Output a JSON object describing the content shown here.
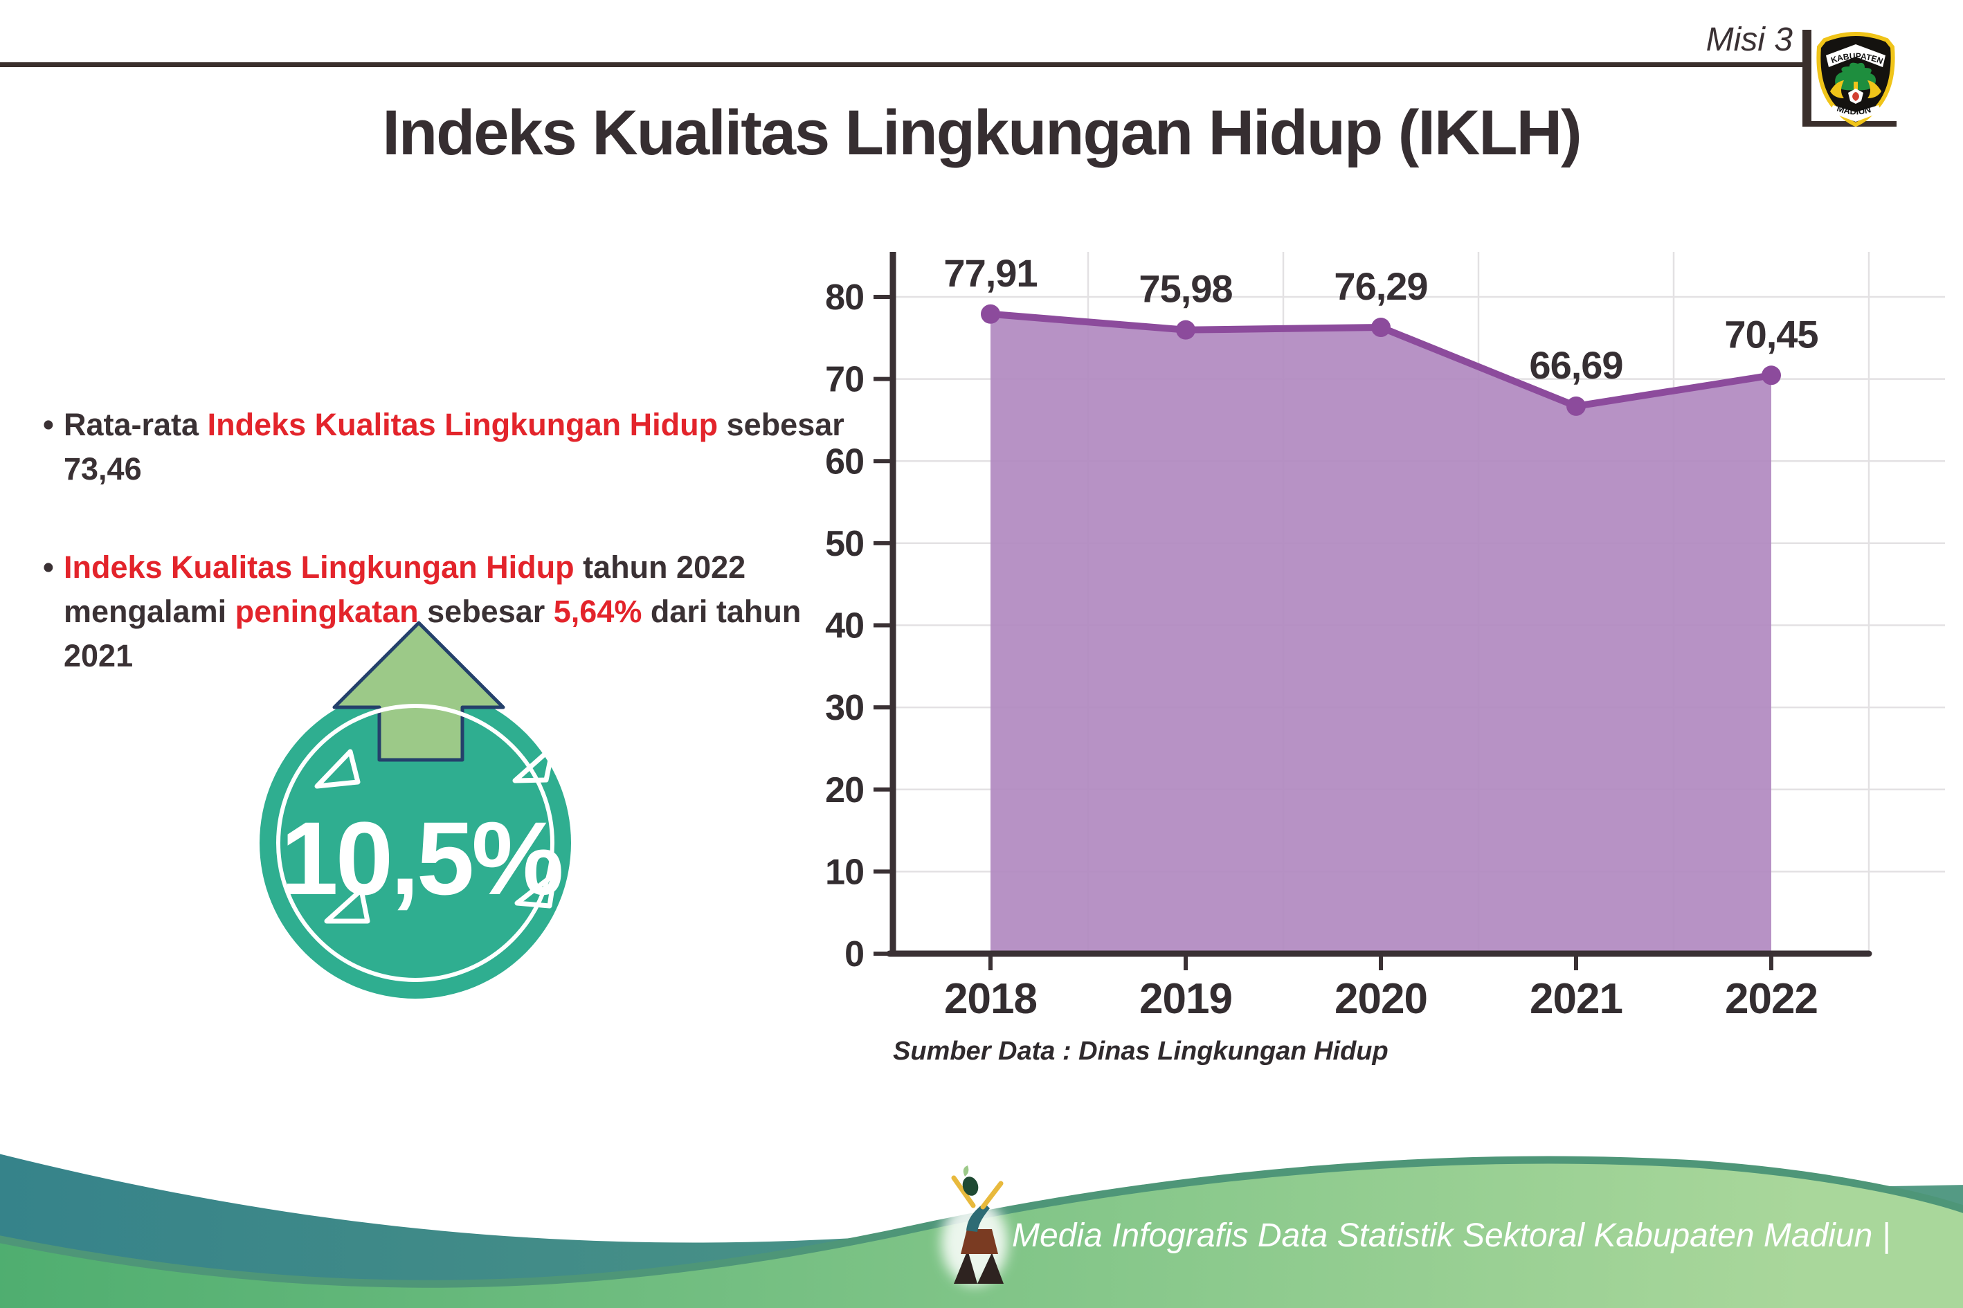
{
  "header": {
    "misi_label": "Misi 3",
    "title": "Indeks Kualitas Lingkungan Hidup (IKLH)"
  },
  "logo": {
    "region_top": "KABUPATEN",
    "region_bottom": "MADIUN"
  },
  "bullets": [
    {
      "segments": [
        {
          "text": "Rata-rata ",
          "color": "dark"
        },
        {
          "text": "Indeks Kualitas Lingkungan Hidup",
          "color": "red"
        },
        {
          "text": " sebesar 73,46",
          "color": "dark"
        }
      ]
    },
    {
      "segments": [
        {
          "text": "Indeks Kualitas Lingkungan Hidup",
          "color": "red"
        },
        {
          "text": " tahun 2022 mengalami ",
          "color": "dark"
        },
        {
          "text": "peningkatan",
          "color": "red"
        },
        {
          "text": " sebesar ",
          "color": "dark"
        },
        {
          "text": "5,64%",
          "color": "red"
        },
        {
          "text": " dari tahun 2021",
          "color": "dark"
        }
      ]
    }
  ],
  "badge": {
    "value": "10,5%",
    "direction": "up"
  },
  "chart_data": {
    "type": "area",
    "categories": [
      "2018",
      "2019",
      "2020",
      "2021",
      "2022"
    ],
    "values": [
      77.91,
      75.98,
      76.29,
      66.69,
      70.45
    ],
    "value_labels": [
      "77,91",
      "75,98",
      "76,29",
      "66,69",
      "70,45"
    ],
    "title": "",
    "xlabel": "",
    "ylabel": "",
    "ylim": [
      0,
      85
    ],
    "yticks": [
      0,
      10,
      20,
      30,
      40,
      50,
      60,
      70,
      80
    ],
    "grid": true,
    "legend": "none",
    "source": "Sumber Data : Dinas Lingkungan Hidup"
  },
  "footer": {
    "credit": "Media Infografis Data Statistik Sektoral Kabupaten Madiun |"
  },
  "colors": {
    "accent_red": "#e3242b",
    "text_dark": "#3a3134",
    "area_fill": "#b189c0",
    "line_purple": "#8c4b9c",
    "gridline": "#e3e1e3",
    "badge_teal": "#2fae90",
    "arrow_green": "#9cc988",
    "arrow_outline": "#24406b",
    "wave_teal": "#36838a",
    "wave_green": "#5cb57a"
  }
}
